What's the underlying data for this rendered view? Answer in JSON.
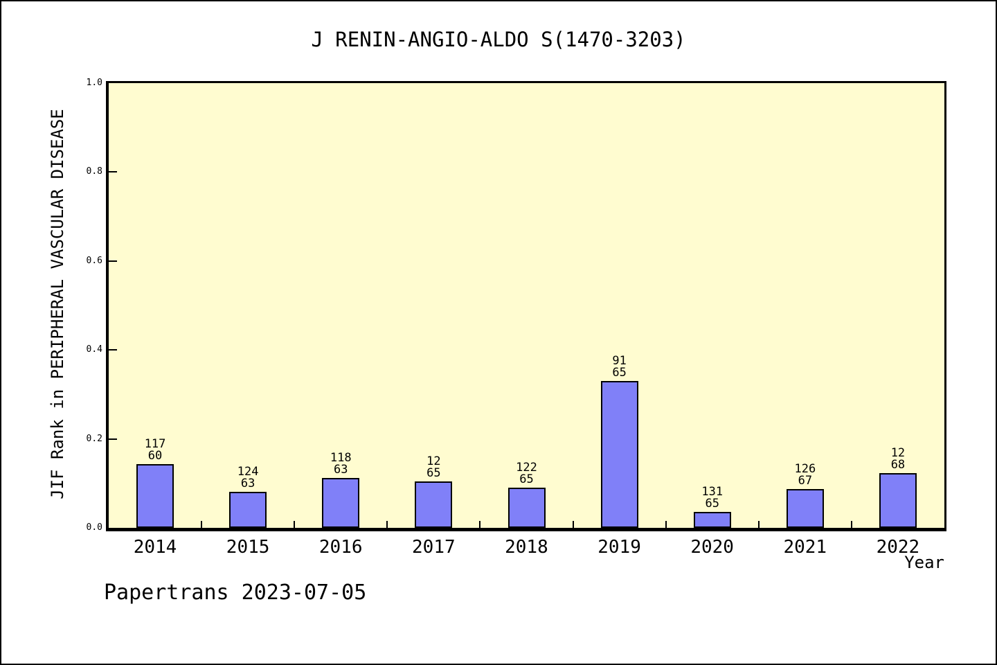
{
  "title": "J RENIN-ANGIO-ALDO S(1470-3203)",
  "footer": "Papertrans 2023-07-05",
  "chart_data": {
    "type": "bar",
    "title": "J RENIN-ANGIO-ALDO S(1470-3203)",
    "xlabel": "Year",
    "ylabel": "JIF Rank in PERIPHERAL VASCULAR DISEASE",
    "categories": [
      "2014",
      "2015",
      "2016",
      "2017",
      "2018",
      "2019",
      "2020",
      "2021",
      "2022"
    ],
    "values": [
      0.143,
      0.081,
      0.112,
      0.104,
      0.09,
      0.33,
      0.036,
      0.087,
      0.123
    ],
    "bar_labels": [
      [
        "117",
        "60"
      ],
      [
        "124",
        "63"
      ],
      [
        "118",
        "63"
      ],
      [
        "12",
        "65"
      ],
      [
        "122",
        "65"
      ],
      [
        "91",
        "65"
      ],
      [
        "131",
        "65"
      ],
      [
        "126",
        "67"
      ],
      [
        "12",
        "68"
      ]
    ],
    "ylim": [
      0.0,
      1.0
    ],
    "yticks": [
      "0.0",
      "0.2",
      "0.4",
      "0.6",
      "0.8",
      "1.0"
    ],
    "grid": false,
    "legend": "none",
    "colors": {
      "bar_fill": "#8080F8",
      "bar_border": "#000000",
      "plot_bg": "#FFFCD0",
      "page_bg": "#FFFFFF",
      "text": "#000000"
    }
  }
}
